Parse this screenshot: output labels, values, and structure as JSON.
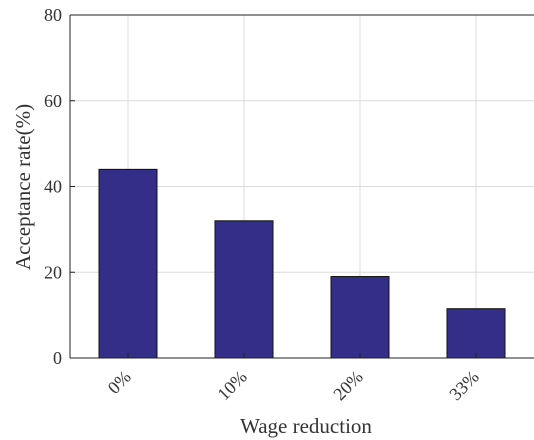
{
  "chart_data": {
    "type": "bar",
    "categories": [
      "0%",
      "10%",
      "20%",
      "33%"
    ],
    "values": [
      44,
      32,
      19,
      11.5
    ],
    "xlabel": "Wage reduction",
    "ylabel": "Acceptance rate(%)",
    "ylim": [
      0,
      80
    ],
    "yticks": [
      0,
      20,
      40,
      60,
      80
    ],
    "grid": true,
    "bar_color": "#332e87"
  }
}
